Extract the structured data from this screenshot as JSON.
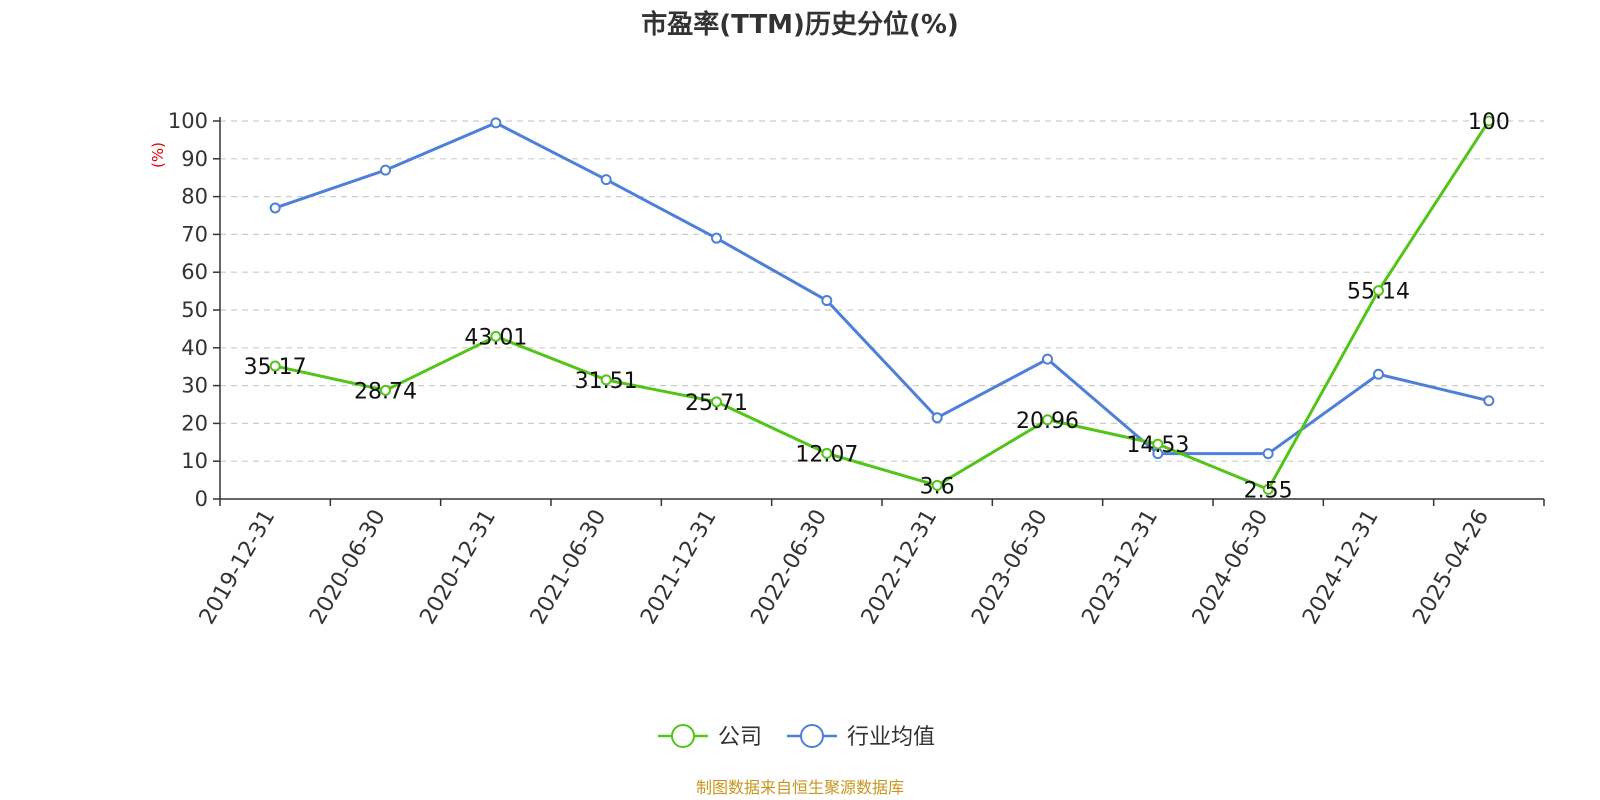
{
  "chart_data": {
    "type": "line",
    "title": "市盈率(TTM)历史分位(%)",
    "ylabel": "(%)",
    "ylim": [
      0,
      100
    ],
    "yticks": [
      0,
      10,
      20,
      30,
      40,
      50,
      60,
      70,
      80,
      90,
      100
    ],
    "grid": true,
    "legend_position": "bottom",
    "categories": [
      "2019-12-31",
      "2020-06-30",
      "2020-12-31",
      "2021-06-30",
      "2021-12-31",
      "2022-06-30",
      "2022-12-31",
      "2023-06-30",
      "2023-12-31",
      "2024-06-30",
      "2024-12-31",
      "2025-04-26"
    ],
    "series": [
      {
        "name": "公司",
        "color": "#52c41a",
        "values": [
          35.17,
          28.74,
          43.01,
          31.51,
          25.71,
          12.07,
          3.6,
          20.96,
          14.53,
          2.55,
          55.14,
          100
        ],
        "labels": [
          "35.17",
          "28.74",
          "43.01",
          "31.51",
          "25.71",
          "12.07",
          "3.6",
          "20.96",
          "14.53",
          "2.55",
          "55.14",
          "100"
        ]
      },
      {
        "name": "行业均值",
        "color": "#4e7fd9",
        "values": [
          77,
          87,
          99.5,
          84.5,
          69,
          52.5,
          21.5,
          37,
          12,
          12,
          33,
          26
        ]
      }
    ],
    "source": "制图数据来自恒生聚源数据库",
    "source_color": "#c8961e",
    "ylabel_color": "#e00000"
  }
}
